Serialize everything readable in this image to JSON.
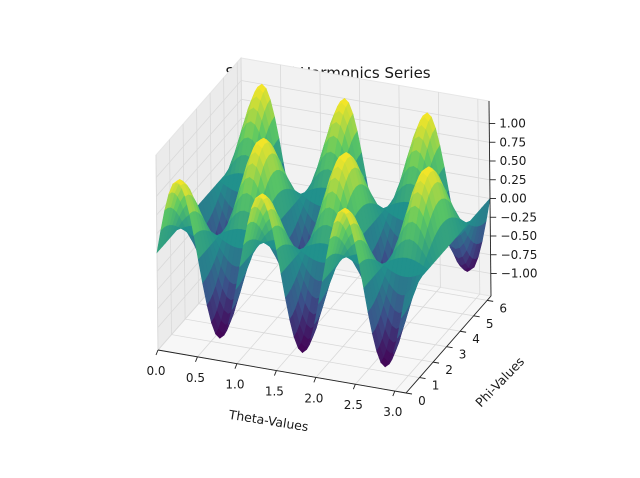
{
  "chart_data": {
    "type": "surface",
    "title": "Spherical Harmonics Series",
    "xlabel": "Theta-Values",
    "ylabel": "Phi-Values",
    "zlabel": "",
    "function": "z = sin(6·phi) over theta, peaks along theta",
    "x": {
      "min": 0,
      "max": 3.14159,
      "ticks": [
        0.0,
        0.5,
        1.0,
        1.5,
        2.0,
        2.5,
        3.0
      ],
      "tick_labels": [
        "0.0",
        "0.5",
        "1.0",
        "1.5",
        "2.0",
        "2.5",
        "3.0"
      ]
    },
    "y": {
      "min": 0,
      "max": 6.28318,
      "ticks": [
        0,
        1,
        2,
        3,
        4,
        5,
        6
      ],
      "tick_labels": [
        "0",
        "1",
        "2",
        "3",
        "4",
        "5",
        "6"
      ]
    },
    "z": {
      "min": -1.0,
      "max": 1.0,
      "ticks": [
        -1.0,
        -0.75,
        -0.5,
        -0.25,
        0.0,
        0.25,
        0.5,
        0.75,
        1.0
      ],
      "tick_labels": [
        "−1.00",
        "−0.75",
        "−0.50",
        "−0.25",
        "0.00",
        "0.25",
        "0.50",
        "0.75",
        "1.00"
      ]
    },
    "colormap": [
      "#440154",
      "#3b528b",
      "#21918c",
      "#5ec962",
      "#fde725"
    ],
    "edge_color": "#e8712a",
    "grid": true
  }
}
